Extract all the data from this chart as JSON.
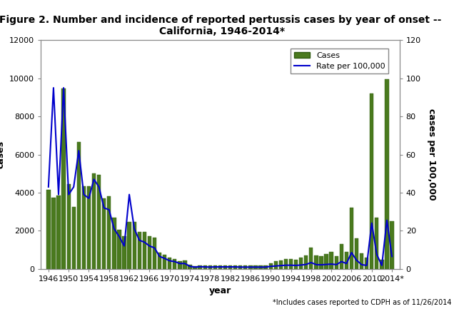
{
  "title": "Figure 2. Number and incidence of reported pertussis cases by year of onset --\n California, 1946-2014*",
  "xlabel": "year",
  "ylabel_left": "cases",
  "ylabel_right": "cases per 100,000",
  "footnote": "*Includes cases reported to CDPH as of 11/26/2014",
  "bar_color": "#4a7a1e",
  "bar_edge_color": "#2d5a0e",
  "line_color": "#0000cc",
  "ylim_left": [
    0,
    12000
  ],
  "ylim_right": [
    0,
    120
  ],
  "yticks_left": [
    0,
    2000,
    4000,
    6000,
    8000,
    10000,
    12000
  ],
  "yticks_right": [
    0,
    20,
    40,
    60,
    80,
    100,
    120
  ],
  "years": [
    1946,
    1947,
    1948,
    1949,
    1950,
    1951,
    1952,
    1953,
    1954,
    1955,
    1956,
    1957,
    1958,
    1959,
    1960,
    1961,
    1962,
    1963,
    1964,
    1965,
    1966,
    1967,
    1968,
    1969,
    1970,
    1971,
    1972,
    1973,
    1974,
    1975,
    1976,
    1977,
    1978,
    1979,
    1980,
    1981,
    1982,
    1983,
    1984,
    1985,
    1986,
    1987,
    1988,
    1989,
    1990,
    1991,
    1992,
    1993,
    1994,
    1995,
    1996,
    1997,
    1998,
    1999,
    2000,
    2001,
    2002,
    2003,
    2004,
    2005,
    2006,
    2007,
    2008,
    2009,
    2010,
    2011,
    2012,
    2013,
    2014
  ],
  "cases": [
    4150,
    3750,
    3850,
    9450,
    4450,
    3250,
    6650,
    4350,
    4350,
    5000,
    4950,
    3700,
    3800,
    2700,
    2050,
    1700,
    2450,
    2450,
    1950,
    1950,
    1700,
    1650,
    850,
    750,
    600,
    520,
    400,
    420,
    200,
    150,
    170,
    165,
    160,
    185,
    190,
    185,
    190,
    185,
    180,
    180,
    180,
    175,
    180,
    180,
    300,
    400,
    450,
    500,
    500,
    480,
    600,
    700,
    1100,
    700,
    680,
    780,
    900,
    680,
    1300,
    900,
    3200,
    1600,
    800,
    580,
    9200,
    2700,
    480,
    9950,
    2500
  ],
  "rate": [
    43,
    95,
    39,
    95,
    39,
    43,
    62,
    39,
    37,
    47,
    43,
    32,
    31,
    21,
    17,
    12,
    39,
    21,
    15,
    14,
    12,
    11,
    6.5,
    5.5,
    4.2,
    3.8,
    2.8,
    2.8,
    1.3,
    0.9,
    1.1,
    1.0,
    0.9,
    1.0,
    1.0,
    1.0,
    1.0,
    1.0,
    0.9,
    0.9,
    0.9,
    0.9,
    0.9,
    0.9,
    1.3,
    1.5,
    1.7,
    1.9,
    1.9,
    1.8,
    2.0,
    2.3,
    3.3,
    2.2,
    2.1,
    2.3,
    2.5,
    2.2,
    3.8,
    2.8,
    8.5,
    4.5,
    2.2,
    1.8,
    24,
    7.5,
    1.8,
    25.5,
    6.5
  ]
}
